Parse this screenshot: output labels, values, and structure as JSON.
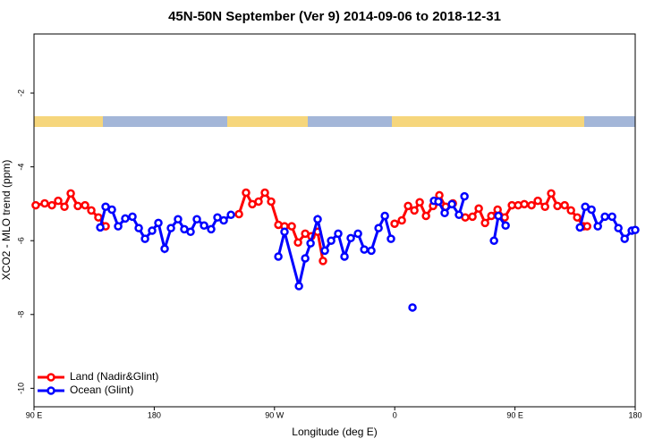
{
  "chart_data": {
    "type": "line",
    "title": "45N-50N September (Ver 9)   2014-09-06 to 2018-12-31",
    "xlabel": "Longitude (deg E)",
    "ylabel": "XCO2 - MLO trend (ppm)",
    "xlim": [
      90,
      540
    ],
    "ylim": [
      -10.5,
      -0.4
    ],
    "xticks": [
      {
        "value": 90,
        "label": "90 E"
      },
      180,
      {
        "value": 270,
        "label": "90 W"
      },
      {
        "value": 360,
        "label": "0"
      },
      {
        "value": 450,
        "label": "90 E"
      },
      {
        "value": 540,
        "label": "180"
      }
    ],
    "yticks": [
      -10,
      -8,
      -6,
      -4,
      -2
    ],
    "grid": false,
    "legend": "lower left",
    "series": [
      {
        "name": "Land (Nadir&Glint)",
        "color": "#ff0000",
        "x": [
          91.3,
          98.0,
          103.4,
          108.1,
          112.8,
          117.5,
          122.8,
          128.2,
          132.9,
          138.2,
          143.6,
          190,
          243.4,
          248.7,
          253.4,
          258.1,
          262.8,
          267.5,
          272.9,
          277.5,
          282.9,
          287.6,
          293.0,
          297.6,
          302.3,
          306.3,
          330,
          359.9,
          365.3,
          370.0,
          374.7,
          378.7,
          383.4,
          388.7,
          393.4,
          398.1,
          403.5,
          408,
          412.8,
          418.2,
          422.9,
          427.6,
          432.3,
          437.0,
          442.3,
          447.7,
          452.4,
          457.0,
          462.4,
          467.1,
          472.5,
          477.1,
          481.8,
          487.2,
          491.9,
          496.6,
          501.3,
          504.0
        ],
        "values": [
          -5.04,
          -4.99,
          -5.04,
          -4.92,
          -5.08,
          -4.72,
          -5.06,
          -5.04,
          -5.18,
          -5.37,
          -5.61,
          null,
          -5.28,
          -4.7,
          -5.01,
          -4.94,
          -4.7,
          -4.94,
          -5.57,
          -5.61,
          -5.61,
          -6.05,
          -5.81,
          -5.88,
          -5.76,
          -6.55,
          null,
          -5.54,
          -5.45,
          -5.06,
          -5.18,
          -4.96,
          -5.33,
          -5.06,
          -4.77,
          -5.08,
          -4.99,
          null,
          -5.37,
          -5.35,
          -5.13,
          -5.52,
          -5.33,
          -5.16,
          -5.37,
          -5.04,
          -5.04,
          -5.01,
          -5.04,
          -4.92,
          -5.08,
          -4.72,
          -5.06,
          -5.04,
          -5.18,
          -5.37,
          -5.61,
          -5.61
        ]
      },
      {
        "name": "Ocean (Glint)",
        "color": "#0000ff",
        "x": [
          139.6,
          143.6,
          148.3,
          153.0,
          158.3,
          163.7,
          168.4,
          173.1,
          178.4,
          183.1,
          187.8,
          192.5,
          197.8,
          202.5,
          207.2,
          211.9,
          217.3,
          222.6,
          227.3,
          232.0,
          237.4,
          255,
          272.9,
          277.5,
          288.3,
          293.0,
          297.0,
          302.3,
          307.7,
          312.4,
          317.7,
          322.4,
          327.1,
          332.5,
          337.2,
          342.5,
          347.9,
          352.6,
          357.2,
          359,
          373.3,
          380,
          389.4,
          392.7,
          397.4,
          402.8,
          408.1,
          412.2,
          418,
          434.3,
          437.6,
          443.0,
          470,
          498.6,
          502.6,
          507.3,
          512.0,
          517.3,
          522.7,
          527.4,
          532.1,
          537.4,
          540.0
        ],
        "values": [
          -5.64,
          -5.08,
          -5.16,
          -5.61,
          -5.4,
          -5.35,
          -5.66,
          -5.95,
          -5.73,
          -5.52,
          -6.22,
          -5.66,
          -5.42,
          -5.69,
          -5.76,
          -5.42,
          -5.59,
          -5.69,
          -5.37,
          -5.45,
          -5.3,
          null,
          -6.43,
          -5.76,
          -7.23,
          -6.48,
          -6.07,
          -5.42,
          -6.27,
          -6.0,
          -5.81,
          -6.43,
          -5.93,
          -5.81,
          -6.24,
          -6.27,
          -5.66,
          -5.33,
          -5.95,
          null,
          -7.81,
          null,
          -4.92,
          -4.94,
          -5.25,
          -5.01,
          -5.3,
          -4.8,
          null,
          -6.0,
          -5.33,
          -5.59,
          null,
          -5.64,
          -5.08,
          -5.16,
          -5.61,
          -5.35,
          -5.35,
          -5.66,
          -5.95,
          -5.73,
          -5.71
        ]
      }
    ]
  }
}
